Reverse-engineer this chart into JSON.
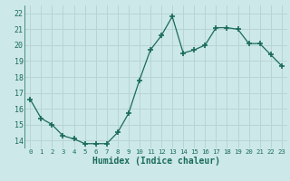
{
  "x": [
    0,
    1,
    2,
    3,
    4,
    5,
    6,
    7,
    8,
    9,
    10,
    11,
    12,
    13,
    14,
    15,
    16,
    17,
    18,
    19,
    20,
    21,
    22,
    23
  ],
  "y": [
    16.6,
    15.4,
    15.0,
    14.3,
    14.1,
    13.8,
    13.8,
    13.8,
    14.5,
    15.7,
    17.8,
    19.7,
    20.6,
    21.8,
    19.5,
    19.7,
    20.0,
    21.1,
    21.1,
    21.0,
    20.1,
    20.1,
    19.4,
    18.7
  ],
  "x_ticks": [
    0,
    1,
    2,
    3,
    4,
    5,
    6,
    7,
    8,
    9,
    10,
    11,
    12,
    13,
    14,
    15,
    16,
    17,
    18,
    19,
    20,
    21,
    22,
    23
  ],
  "x_tick_labels": [
    "0",
    "1",
    "2",
    "3",
    "4",
    "5",
    "6",
    "7",
    "8",
    "9",
    "10",
    "11",
    "12",
    "13",
    "14",
    "15",
    "16",
    "17",
    "18",
    "19",
    "20",
    "21",
    "22",
    "23"
  ],
  "y_ticks": [
    14,
    15,
    16,
    17,
    18,
    19,
    20,
    21,
    22
  ],
  "ylim": [
    13.5,
    22.5
  ],
  "xlim": [
    -0.5,
    23.5
  ],
  "xlabel": "Humidex (Indice chaleur)",
  "line_color": "#1a6b5a",
  "marker_color": "#1a6b5a",
  "bg_color": "#cce8e8",
  "grid_color": "#b8d4d4",
  "text_color": "#1a6b5a"
}
